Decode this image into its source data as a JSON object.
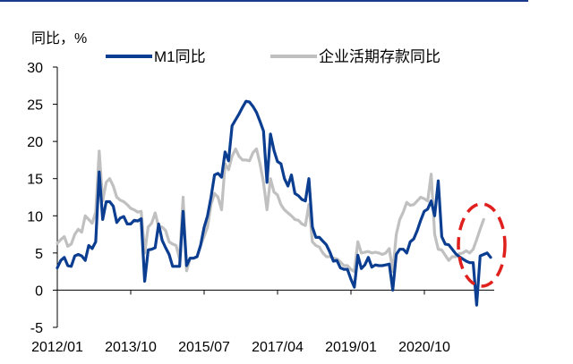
{
  "chart_data": {
    "type": "line",
    "ylabel": "同比，%",
    "ylim": [
      -5,
      30
    ],
    "yticks": [
      30,
      25,
      20,
      15,
      10,
      5,
      0,
      -5
    ],
    "xtick_labels": [
      "2012/01",
      "2013/10",
      "2015/07",
      "2017/04",
      "2019/01",
      "2020/10"
    ],
    "x_start": "2012-01",
    "legend_position": "top",
    "series": [
      {
        "name": "M1同比",
        "color": "#0b3d91",
        "values": [
          3.0,
          4.0,
          4.4,
          3.3,
          3.2,
          4.6,
          4.8,
          4.6,
          4.0,
          6.0,
          5.6,
          6.5,
          15.9,
          9.5,
          11.9,
          11.9,
          11.3,
          9.1,
          9.7,
          9.9,
          8.9,
          8.9,
          9.4,
          9.3,
          9.6,
          1.2,
          5.4,
          5.5,
          5.7,
          8.9,
          6.7,
          5.7,
          4.8,
          3.2,
          3.2,
          3.2,
          10.6,
          3.3,
          4.3,
          4.3,
          4.5,
          6.0,
          8.4,
          10.0,
          12.5,
          15.5,
          15.7,
          15.2,
          18.6,
          17.4,
          22.1,
          22.9,
          23.7,
          24.6,
          25.4,
          25.3,
          24.7,
          23.9,
          22.7,
          21.4,
          14.5,
          21.0,
          18.8,
          17.3,
          17.0,
          15.0,
          14.0,
          15.5,
          13.0,
          12.7,
          12.2,
          12.0,
          15.0,
          8.5,
          7.1,
          7.1,
          6.6,
          6.1,
          5.1,
          3.9,
          4.0,
          3.0,
          2.8,
          2.8,
          1.5,
          0.4,
          4.7,
          2.9,
          3.4,
          4.4,
          3.1,
          3.4,
          3.3,
          3.3,
          3.4,
          3.5,
          0.0,
          4.8,
          5.5,
          5.5,
          5.0,
          6.5,
          6.9,
          8.0,
          9.4,
          10.6,
          10.9,
          12.0,
          10.0,
          14.7,
          7.2,
          6.2,
          6.1,
          5.5,
          4.9,
          4.5,
          4.2,
          3.9,
          3.7,
          3.7,
          -2.0,
          4.6,
          4.8,
          5.0,
          4.4
        ]
      },
      {
        "name": "企业活期存款同比",
        "color": "#c0c0c0",
        "values": [
          6.3,
          6.8,
          7.2,
          5.9,
          6.2,
          7.5,
          8.2,
          7.8,
          10.0,
          9.5,
          9.0,
          10.5,
          18.7,
          12.0,
          14.5,
          15.0,
          14.0,
          12.5,
          12.1,
          11.9,
          11.5,
          11.0,
          10.8,
          10.5,
          10.6,
          5.0,
          8.5,
          9.0,
          10.4,
          8.5,
          8.5,
          8.0,
          6.5,
          6.2,
          6.0,
          4.2,
          12.5,
          2.6,
          4.3,
          4.3,
          4.5,
          6.0,
          7.2,
          8.5,
          11.5,
          13.0,
          12.5,
          10.8,
          17.0,
          16.2,
          18.0,
          19.0,
          18.0,
          17.5,
          17.5,
          17.4,
          18.5,
          19.0,
          17.0,
          14.5,
          10.8,
          15.0,
          13.2,
          12.8,
          11.5,
          10.8,
          10.4,
          10.0,
          9.5,
          9.4,
          8.9,
          8.7,
          11.5,
          6.5,
          6.0,
          5.8,
          5.0,
          4.5,
          4.5,
          4.3,
          4.2,
          3.8,
          3.3,
          3.3,
          2.8,
          2.5,
          6.5,
          5.0,
          5.1,
          5.2,
          5.0,
          5.1,
          5.0,
          4.8,
          5.0,
          5.6,
          2.5,
          7.5,
          9.5,
          10.5,
          11.8,
          11.4,
          11.5,
          12.0,
          12.5,
          12.3,
          12.0,
          15.6,
          7.5,
          5.5,
          5.4,
          4.7,
          4.0,
          4.5,
          4.5,
          4.9,
          5.0,
          5.3,
          5.0,
          5.5,
          6.8,
          8.2,
          9.5
        ]
      }
    ]
  },
  "colors": {
    "top_rule": "#1a3a8c",
    "annotation_circle": "#e0201c",
    "axis": "#000000"
  }
}
